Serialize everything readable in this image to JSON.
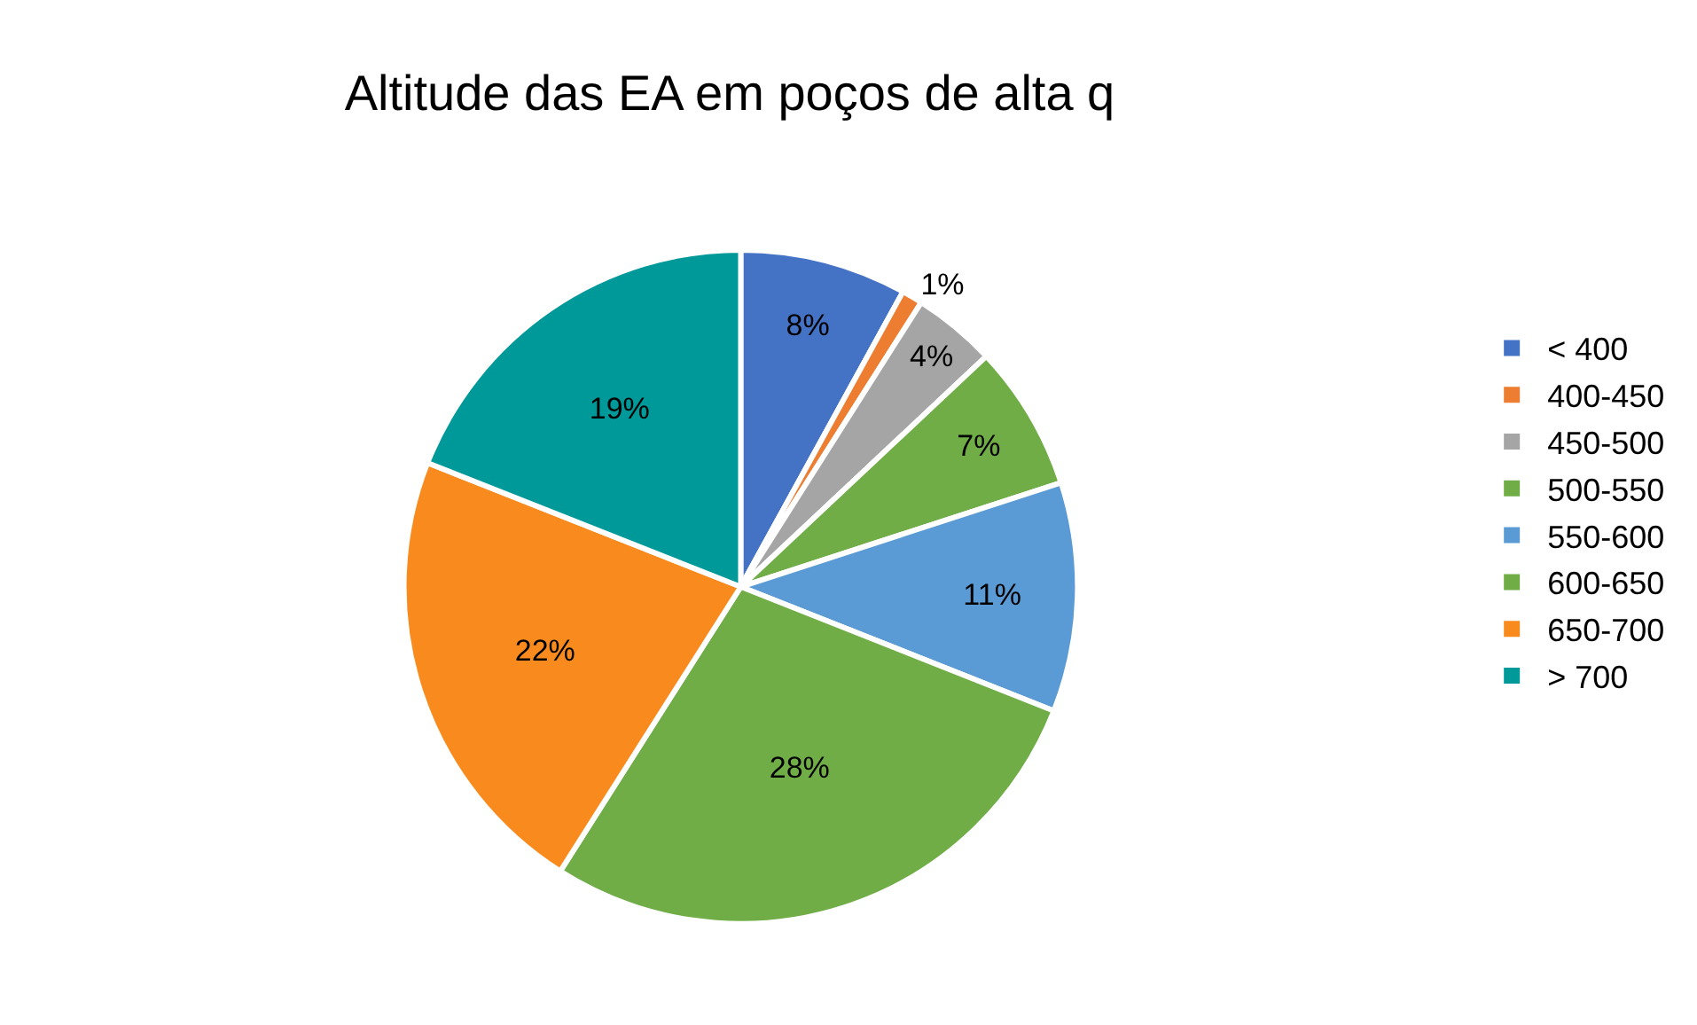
{
  "chart_data": {
    "type": "pie",
    "title": "Altitude das EA em poços de alta q",
    "categories": [
      "< 400",
      "400-450",
      "450-500",
      "500-550",
      "550-600",
      "600-650",
      "650-700",
      "> 700"
    ],
    "values": [
      8,
      1,
      4,
      7,
      11,
      28,
      22,
      19
    ],
    "value_labels": [
      "8%",
      "1%",
      "4%",
      "7%",
      "11%",
      "28%",
      "22%",
      "19%"
    ],
    "colors": [
      "#4472c4",
      "#ed7d31",
      "#a5a5a5",
      "#70ad47",
      "#5b9bd5",
      "#70ad47",
      "#f98b1e",
      "#009999"
    ],
    "legend": "right"
  }
}
